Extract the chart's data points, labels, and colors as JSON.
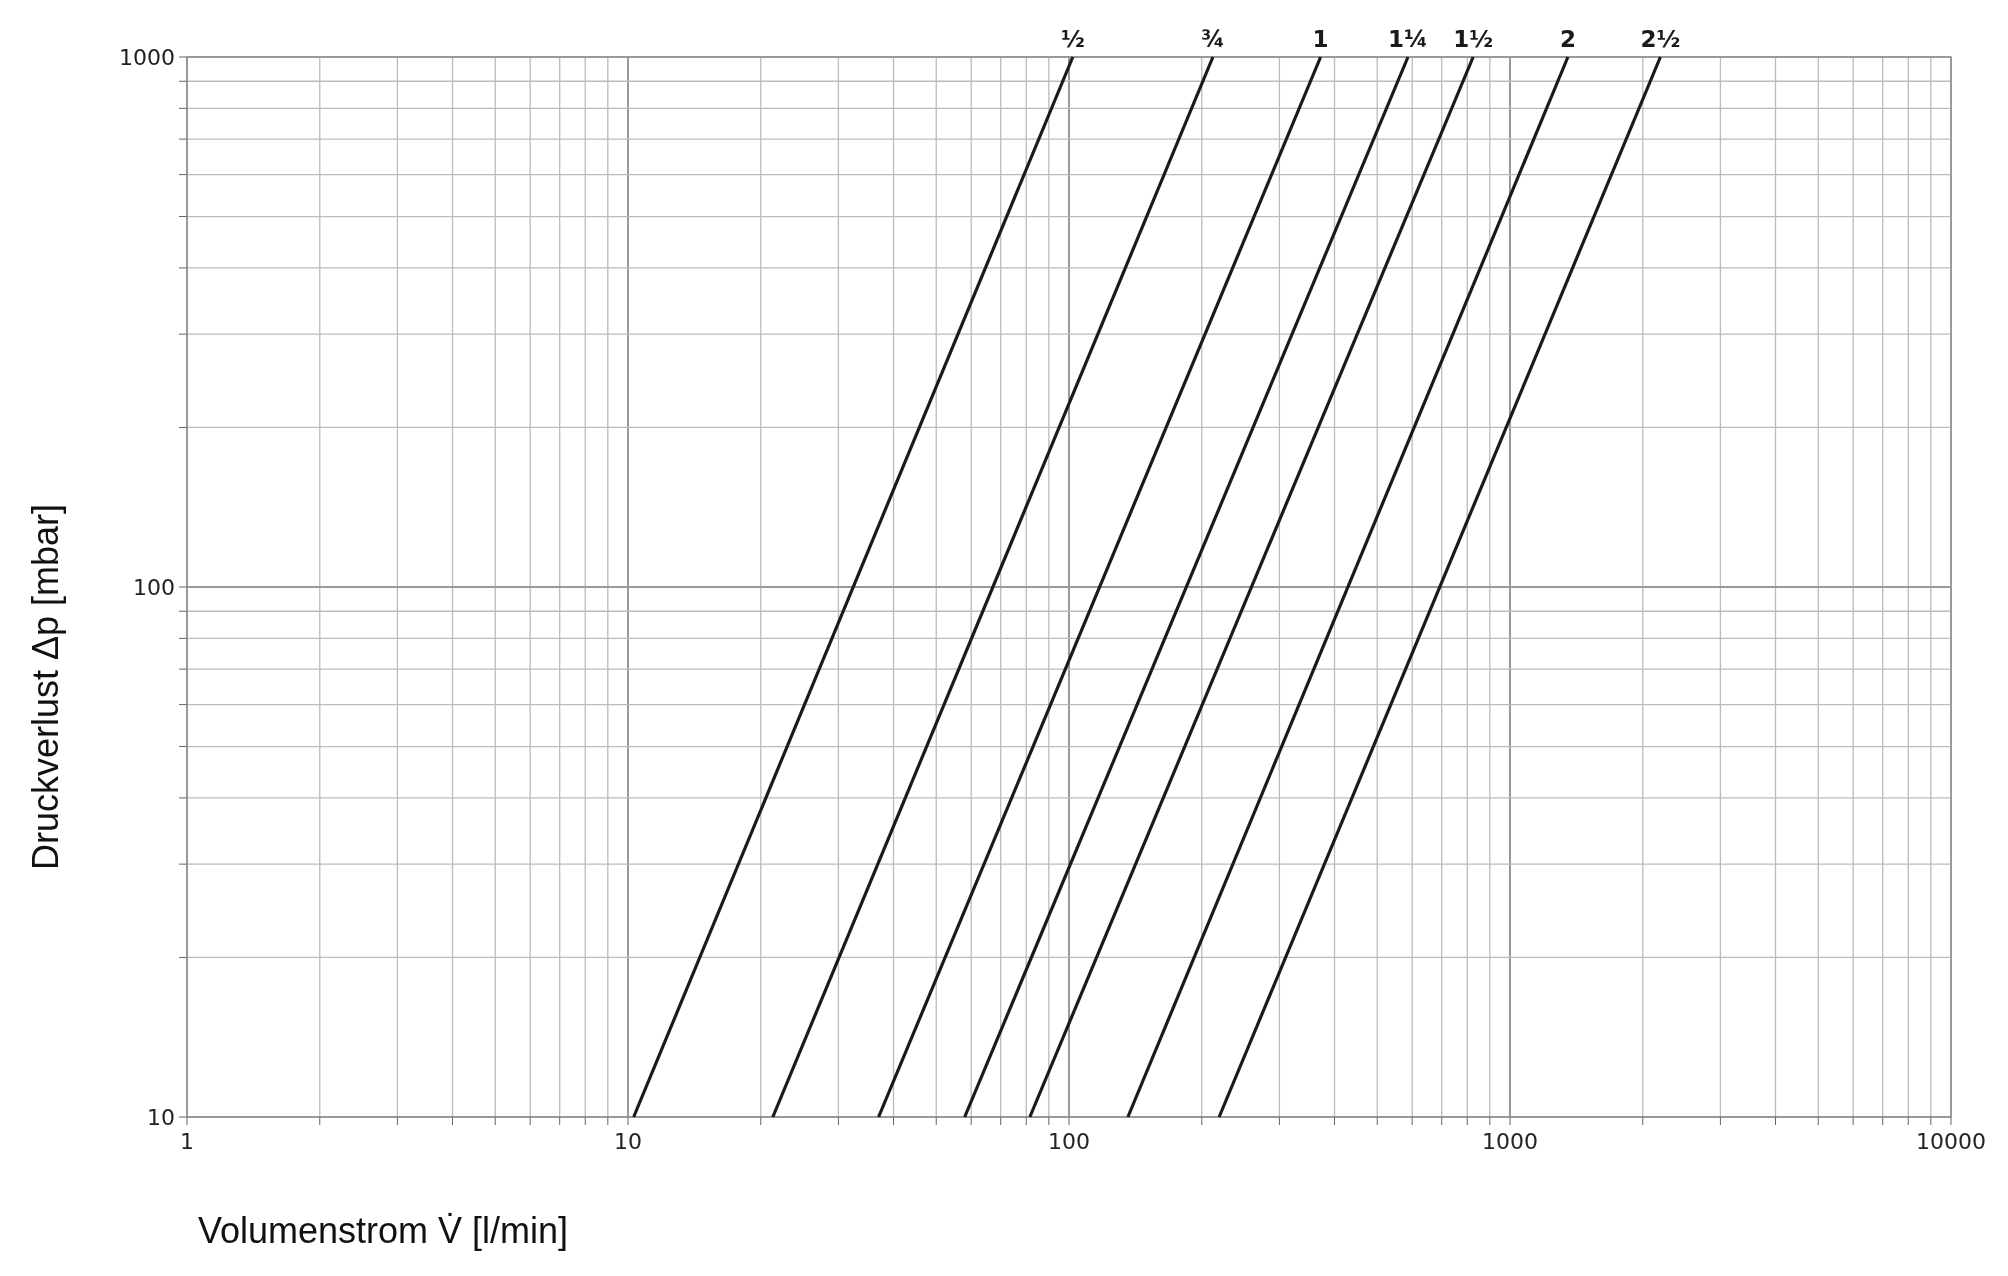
{
  "chart_data": {
    "type": "line",
    "xlabel": "Volumenstrom V̇ [l/min]",
    "ylabel": "Druckverlust Δp [mbar]",
    "log": "xy",
    "xlim": [
      1,
      10000
    ],
    "ylim": [
      10,
      1000
    ],
    "xticks": [
      1,
      {
        "value": 2,
        "label": null
      },
      {
        "value": 3,
        "label": null
      },
      {
        "value": 4,
        "label": null
      },
      {
        "value": 5,
        "label": null
      },
      {
        "value": 6,
        "label": null
      },
      {
        "value": 7,
        "label": null
      },
      {
        "value": 8,
        "label": null
      },
      {
        "value": 9,
        "label": null
      },
      10,
      {
        "value": 20,
        "label": null
      },
      {
        "value": 30,
        "label": null
      },
      {
        "value": 40,
        "label": null
      },
      {
        "value": 50,
        "label": null
      },
      {
        "value": 60,
        "label": null
      },
      {
        "value": 70,
        "label": null
      },
      {
        "value": 80,
        "label": null
      },
      {
        "value": 90,
        "label": null
      },
      100,
      {
        "value": 200,
        "label": null
      },
      {
        "value": 300,
        "label": null
      },
      {
        "value": 400,
        "label": null
      },
      {
        "value": 500,
        "label": null
      },
      {
        "value": 600,
        "label": null
      },
      {
        "value": 700,
        "label": null
      },
      {
        "value": 800,
        "label": null
      },
      {
        "value": 900,
        "label": null
      },
      1000,
      {
        "value": 2000,
        "label": null
      },
      {
        "value": 3000,
        "label": null
      },
      {
        "value": 4000,
        "label": null
      },
      {
        "value": 5000,
        "label": null
      },
      {
        "value": 6000,
        "label": null
      },
      {
        "value": 7000,
        "label": null
      },
      {
        "value": 8000,
        "label": null
      },
      {
        "value": 9000,
        "label": null
      },
      10000
    ],
    "yticks": [
      10,
      {
        "value": 20,
        "label": null
      },
      {
        "value": 30,
        "label": null
      },
      {
        "value": 40,
        "label": null
      },
      {
        "value": 50,
        "label": null
      },
      {
        "value": 60,
        "label": null
      },
      {
        "value": 70,
        "label": null
      },
      {
        "value": 80,
        "label": null
      },
      {
        "value": 90,
        "label": null
      },
      100,
      {
        "value": 200,
        "label": null
      },
      {
        "value": 300,
        "label": null
      },
      {
        "value": 400,
        "label": null
      },
      {
        "value": 500,
        "label": null
      },
      {
        "value": 600,
        "label": null
      },
      {
        "value": 700,
        "label": null
      },
      {
        "value": 800,
        "label": null
      },
      {
        "value": 900,
        "label": null
      },
      1000
    ],
    "grid": true,
    "marker": "none",
    "line_style": "solid",
    "series": [
      {
        "name": "½",
        "color": "#1a1a1a",
        "x": [
          10.3,
          102
        ],
        "values": [
          10,
          1000
        ]
      },
      {
        "name": "¾",
        "color": "#1a1a1a",
        "x": [
          21.3,
          212
        ],
        "values": [
          10,
          1000
        ]
      },
      {
        "name": "1",
        "color": "#1a1a1a",
        "x": [
          37,
          372
        ],
        "values": [
          10,
          1000
        ]
      },
      {
        "name": "1¼",
        "color": "#1a1a1a",
        "x": [
          58,
          587
        ],
        "values": [
          10,
          1000
        ]
      },
      {
        "name": "1½",
        "color": "#1a1a1a",
        "x": [
          81.5,
          825
        ],
        "values": [
          10,
          1000
        ]
      },
      {
        "name": "2",
        "color": "#1a1a1a",
        "x": [
          136,
          1353
        ],
        "values": [
          10,
          1000
        ]
      },
      {
        "name": "2½",
        "color": "#1a1a1a",
        "x": [
          219,
          2193
        ],
        "values": [
          10,
          1000
        ]
      }
    ]
  }
}
